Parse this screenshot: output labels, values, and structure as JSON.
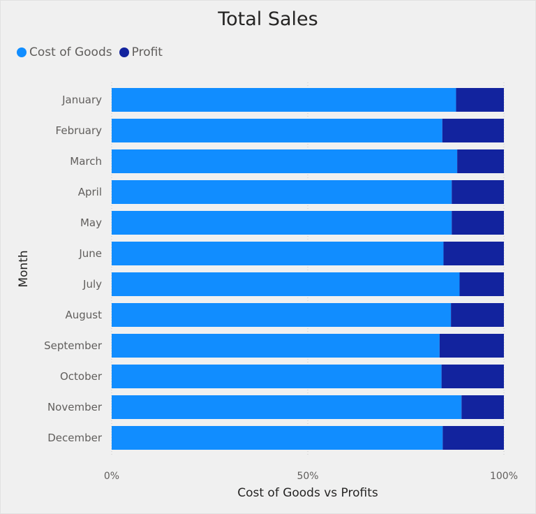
{
  "chart_data": {
    "type": "bar",
    "orientation": "horizontal",
    "stacking": "100%",
    "title": "Total Sales",
    "xlabel": "Cost of Goods vs Profits",
    "ylabel": "Month",
    "xlim": [
      0,
      100
    ],
    "x_ticks": [
      "0%",
      "50%",
      "100%"
    ],
    "grid": "vertical dotted",
    "legend_position": "top-left",
    "categories": [
      "January",
      "February",
      "March",
      "April",
      "May",
      "June",
      "July",
      "August",
      "September",
      "October",
      "November",
      "December"
    ],
    "series": [
      {
        "name": "Cost of Goods",
        "color": "#118dff",
        "values": [
          87.8,
          84.3,
          88.1,
          86.7,
          86.7,
          84.6,
          88.7,
          86.5,
          83.6,
          84.1,
          89.2,
          84.4
        ]
      },
      {
        "name": "Profit",
        "color": "#12239e",
        "values": [
          12.2,
          15.7,
          11.9,
          13.3,
          13.3,
          15.4,
          11.3,
          13.5,
          16.4,
          15.9,
          10.8,
          15.6
        ]
      }
    ]
  }
}
